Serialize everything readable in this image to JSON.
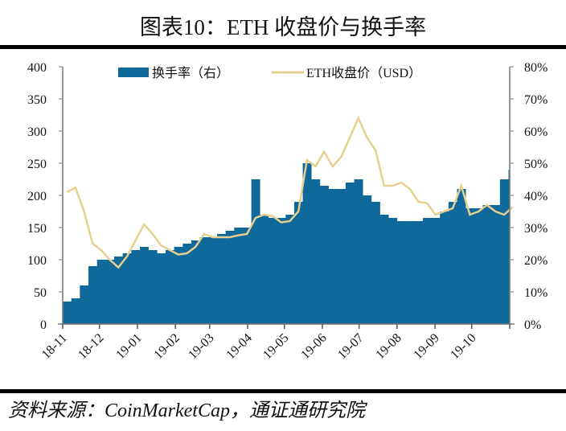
{
  "title": "图表10：ETH 收盘价与换手率",
  "source": "资料来源：CoinMarketCap，通证通研究院",
  "chart_data": {
    "type": "bar+line",
    "x_tick_labels": [
      "18-11",
      "18-12",
      "19-01",
      "19-02",
      "19-03",
      "19-04",
      "19-05",
      "19-06",
      "19-07",
      "19-08",
      "19-09",
      "19-10"
    ],
    "y_left": {
      "range": [
        0,
        400
      ],
      "ticks": [
        "0",
        "50",
        "100",
        "150",
        "200",
        "250",
        "300",
        "350",
        "400"
      ]
    },
    "y_right": {
      "range": [
        0,
        80
      ],
      "ticks": [
        "0%",
        "10%",
        "20%",
        "30%",
        "40%",
        "50%",
        "60%",
        "70%",
        "80%"
      ]
    },
    "legend": {
      "placement": "top",
      "items": [
        "换手率（右）",
        "ETH收盘价（USD）"
      ]
    },
    "grid": false,
    "colors": {
      "turnover": "#10699b",
      "price": "#e6cf8f"
    },
    "dates": [
      "2018-11-01",
      "2018-11-08",
      "2018-11-15",
      "2018-11-22",
      "2018-11-29",
      "2018-12-06",
      "2018-12-13",
      "2018-12-20",
      "2018-12-27",
      "2019-01-03",
      "2019-01-10",
      "2019-01-17",
      "2019-01-24",
      "2019-01-31",
      "2019-02-07",
      "2019-02-14",
      "2019-02-21",
      "2019-02-28",
      "2019-03-07",
      "2019-03-14",
      "2019-03-21",
      "2019-03-28",
      "2019-04-04",
      "2019-04-11",
      "2019-04-18",
      "2019-04-25",
      "2019-05-02",
      "2019-05-09",
      "2019-05-16",
      "2019-05-23",
      "2019-05-30",
      "2019-06-06",
      "2019-06-13",
      "2019-06-20",
      "2019-06-27",
      "2019-07-04",
      "2019-07-11",
      "2019-07-18",
      "2019-07-25",
      "2019-08-01",
      "2019-08-08",
      "2019-08-15",
      "2019-08-22",
      "2019-08-29",
      "2019-09-05",
      "2019-09-12",
      "2019-09-19",
      "2019-09-26",
      "2019-10-03",
      "2019-10-10",
      "2019-10-17",
      "2019-10-24",
      "2019-10-31"
    ],
    "series": [
      {
        "name": "换手率（右）",
        "type": "bar",
        "axis": "right",
        "unit": "%",
        "values": [
          7,
          8,
          12,
          18,
          20,
          20,
          21,
          22,
          23,
          24,
          23,
          22,
          23,
          24,
          25,
          26,
          27,
          27,
          28,
          29,
          30,
          30,
          45,
          34,
          33,
          33,
          34,
          38,
          50,
          45,
          43,
          42,
          42,
          44,
          45,
          40,
          38,
          34,
          33,
          32,
          32,
          32,
          33,
          33,
          35,
          38,
          42,
          36,
          36,
          37,
          37,
          45,
          48
        ]
      },
      {
        "name": "ETH收盘价（USD）",
        "type": "line",
        "axis": "left",
        "unit": "USD",
        "values": [
          205,
          212,
          175,
          125,
          115,
          100,
          88,
          105,
          130,
          155,
          140,
          122,
          115,
          108,
          110,
          120,
          140,
          135,
          135,
          135,
          138,
          140,
          165,
          170,
          168,
          158,
          160,
          175,
          255,
          245,
          268,
          245,
          260,
          290,
          320,
          290,
          270,
          215,
          215,
          220,
          210,
          190,
          188,
          170,
          175,
          180,
          215,
          170,
          175,
          185,
          175,
          170,
          182
        ]
      }
    ]
  }
}
